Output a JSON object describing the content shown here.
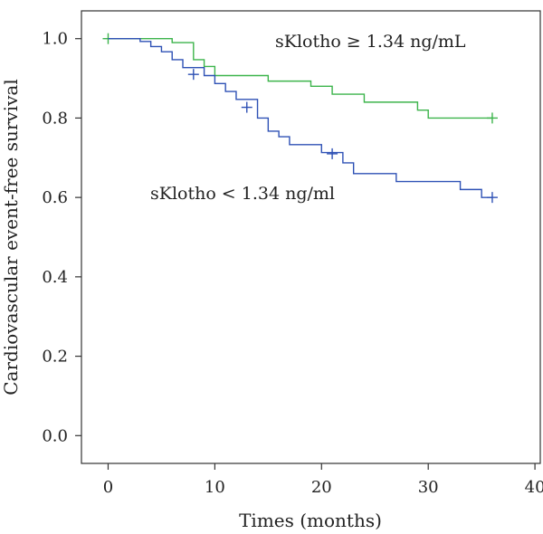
{
  "chart_data": {
    "type": "line",
    "xlabel": "Times (months)",
    "ylabel": "Cardiovascular event-free survival",
    "xlim": [
      -2.5,
      40.5
    ],
    "ylim": [
      -0.07,
      1.07
    ],
    "x_ticks": [
      0,
      10,
      20,
      30,
      40
    ],
    "y_ticks": [
      0.0,
      0.2,
      0.4,
      0.6,
      0.8,
      1.0
    ],
    "x_tick_labels": [
      "0",
      "10",
      "20",
      "30",
      "40"
    ],
    "y_tick_labels": [
      "0.0",
      "0.2",
      "0.4",
      "0.6",
      "0.8",
      "1.0"
    ],
    "grid": false,
    "legend": "none",
    "series": [
      {
        "name": "sKlotho ≥ 1.34 ng/mL",
        "color": "#3cb44b",
        "step_points": [
          [
            0,
            1.0
          ],
          [
            6,
            0.99
          ],
          [
            8,
            0.947
          ],
          [
            9,
            0.93
          ],
          [
            10,
            0.907
          ],
          [
            15,
            0.893
          ],
          [
            19,
            0.88
          ],
          [
            21,
            0.86
          ],
          [
            24,
            0.84
          ],
          [
            29,
            0.82
          ],
          [
            30,
            0.8
          ],
          [
            36,
            0.8
          ]
        ],
        "censor_points": [
          [
            0,
            1.0
          ],
          [
            36,
            0.8
          ]
        ]
      },
      {
        "name": "sKlotho < 1.34 ng/ml",
        "color": "#2e51b5",
        "step_points": [
          [
            0,
            1.0
          ],
          [
            3,
            0.993
          ],
          [
            4,
            0.98
          ],
          [
            5,
            0.967
          ],
          [
            6,
            0.947
          ],
          [
            7,
            0.927
          ],
          [
            9,
            0.907
          ],
          [
            10,
            0.887
          ],
          [
            11,
            0.867
          ],
          [
            12,
            0.847
          ],
          [
            14,
            0.8
          ],
          [
            15,
            0.767
          ],
          [
            16,
            0.753
          ],
          [
            17,
            0.733
          ],
          [
            20,
            0.713
          ],
          [
            22,
            0.687
          ],
          [
            23,
            0.66
          ],
          [
            27,
            0.64
          ],
          [
            33,
            0.62
          ],
          [
            35,
            0.6
          ],
          [
            36,
            0.6
          ]
        ],
        "censor_points": [
          [
            8,
            0.91
          ],
          [
            13,
            0.827
          ],
          [
            21,
            0.71
          ],
          [
            36,
            0.6
          ]
        ]
      }
    ],
    "annotations": [
      {
        "text": "sKlotho ≥ 1.34 ng/mL",
        "series_index": 0
      },
      {
        "text": "sKlotho < 1.34 ng/ml",
        "series_index": 1
      }
    ]
  }
}
